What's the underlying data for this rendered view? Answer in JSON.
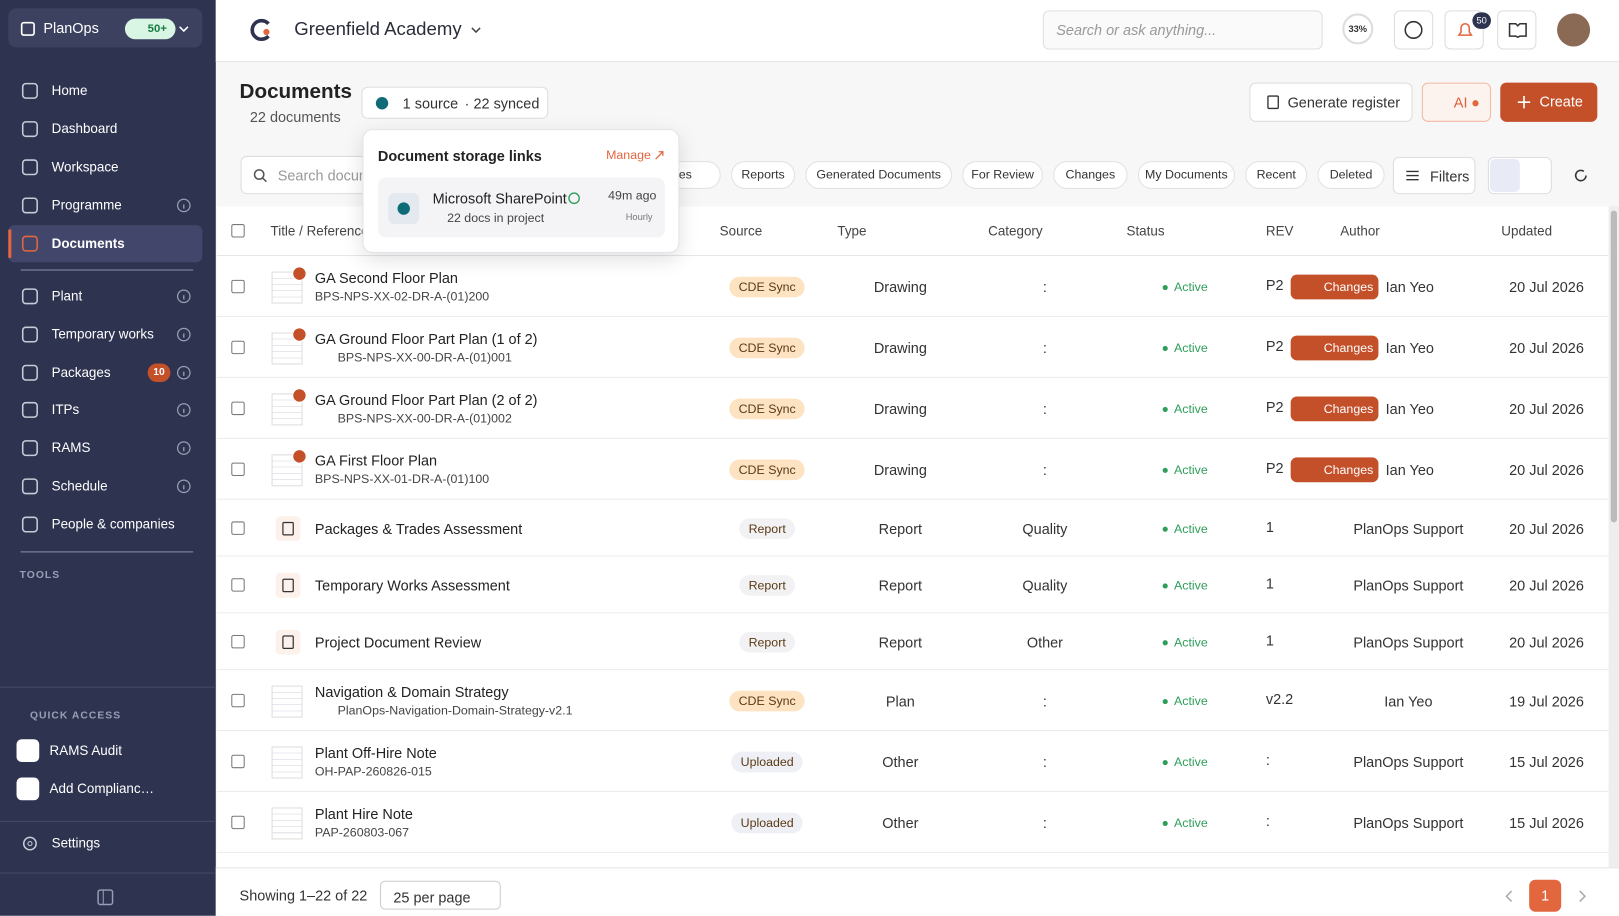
{
  "sidebar": {
    "brand": "PlanOps",
    "badge": "50+",
    "nav": [
      {
        "label": "Home"
      },
      {
        "label": "Dashboard"
      },
      {
        "label": "Workspace"
      },
      {
        "label": "Programme",
        "info": true
      },
      {
        "label": "Documents",
        "active": true
      },
      {
        "label": "Plant",
        "info": true,
        "divider": true
      },
      {
        "label": "Temporary works",
        "info": true
      },
      {
        "label": "Packages",
        "info": true,
        "badge": "10"
      },
      {
        "label": "ITPs",
        "info": true
      },
      {
        "label": "RAMS",
        "info": true
      },
      {
        "label": "Schedule",
        "info": true
      },
      {
        "label": "People & companies"
      }
    ],
    "tools": "TOOLS",
    "quick_access": "QUICK ACCESS",
    "quick": [
      "RAMS Audit",
      "Add Complianc…"
    ],
    "settings": "Settings"
  },
  "topbar": {
    "project": "Greenfield Academy",
    "search": "Search or ask anything...",
    "progress": "33%",
    "notifications": "50"
  },
  "header": {
    "title": "Documents",
    "count": "22 documents",
    "source": "1 source",
    "synced": "· 22 synced",
    "generate": "Generate register",
    "ai": "AI",
    "create": "Create"
  },
  "popover": {
    "title": "Document storage links",
    "manage": "Manage",
    "name": "Microsoft SharePoint",
    "docs": "22 docs in project",
    "time": "49m ago",
    "frequency": "Hourly"
  },
  "toolbar": {
    "search": "Search documents",
    "tabs": [
      "All Files",
      "Reports",
      "Generated Documents",
      "For Review",
      "Changes",
      "My Documents",
      "Recent",
      "Deleted"
    ],
    "filters": "Filters"
  },
  "table": {
    "columns": [
      "Title / Reference",
      "Source",
      "Type",
      "Category",
      "Status",
      "REV",
      "Author",
      "Updated"
    ],
    "rows": [
      {
        "title": "GA Second Floor Plan",
        "ref": "BPS-NPS-XX-02-DR-A-(01)200",
        "source": "CDE Sync",
        "source_color": "#fde3c2",
        "type": "Drawing",
        "category": ":",
        "status": "Active",
        "rev": "P2",
        "changes": "Changes",
        "author": "Ian Yeo",
        "updated": "20 Jul 2026"
      },
      {
        "title": "GA Ground Floor Part Plan (1 of 2)",
        "ref": "BPS-NPS-XX-00-DR-A-(01)001",
        "source": "CDE Sync",
        "source_color": "#fde3c2",
        "type": "Drawing",
        "category": ":",
        "status": "Active",
        "rev": "P2",
        "changes": "Changes",
        "author": "Ian Yeo",
        "updated": "20 Jul 2026"
      },
      {
        "title": "GA Ground Floor Part Plan (2 of 2)",
        "ref": "BPS-NPS-XX-00-DR-A-(01)002",
        "source": "CDE Sync",
        "source_color": "#fde3c2",
        "type": "Drawing",
        "category": ":",
        "status": "Active",
        "rev": "P2",
        "changes": "Changes",
        "author": "Ian Yeo",
        "updated": "20 Jul 2026"
      },
      {
        "title": "GA First Floor Plan",
        "ref": "BPS-NPS-XX-01-DR-A-(01)100",
        "source": "CDE Sync",
        "source_color": "#fde3c2",
        "type": "Drawing",
        "category": ":",
        "status": "Active",
        "rev": "P2",
        "changes": "Changes",
        "author": "Ian Yeo",
        "updated": "20 Jul 2026"
      },
      {
        "title": "Packages & Trades Assessment",
        "source": "Report",
        "source_color": "#f2f2f4",
        "type": "Report",
        "category": "Quality",
        "status": "Active",
        "rev": "1",
        "author": "PlanOps Support",
        "updated": "20 Jul 2026"
      },
      {
        "title": "Temporary Works Assessment",
        "source": "Report",
        "source_color": "#f2f2f4",
        "type": "Report",
        "category": "Quality",
        "status": "Active",
        "rev": "1",
        "author": "PlanOps Support",
        "updated": "20 Jul 2026"
      },
      {
        "title": "Project Document Review",
        "source": "Report",
        "source_color": "#f2f2f4",
        "type": "Report",
        "category": "Other",
        "status": "Active",
        "rev": "1",
        "author": "PlanOps Support",
        "updated": "20 Jul 2026"
      },
      {
        "title": "Navigation & Domain Strategy",
        "ref": "PlanOps-Navigation-Domain-Strategy-v2.1",
        "source": "CDE Sync",
        "source_color": "#fde3c2",
        "type": "Plan",
        "category": ":",
        "status": "Active",
        "rev": "v2.2",
        "author": "Ian Yeo",
        "updated": "19 Jul 2026"
      },
      {
        "title": "Plant Off-Hire Note",
        "ref": "OH-PAP-260826-015",
        "source": "Uploaded",
        "source_color": "#eef0f5",
        "type": "Other",
        "category": ":",
        "status": "Active",
        "rev": ":",
        "author": "PlanOps Support",
        "updated": "15 Jul 2026"
      },
      {
        "title": "Plant Hire Note",
        "ref": "PAP-260803-067",
        "source": "Uploaded",
        "source_color": "#eef0f5",
        "type": "Other",
        "category": ":",
        "status": "Active",
        "rev": ":",
        "author": "PlanOps Support",
        "updated": "15 Jul 2026"
      }
    ]
  },
  "footer": {
    "showing": "Showing 1–22 of 22",
    "per_page": "25 per page",
    "page": "1"
  }
}
